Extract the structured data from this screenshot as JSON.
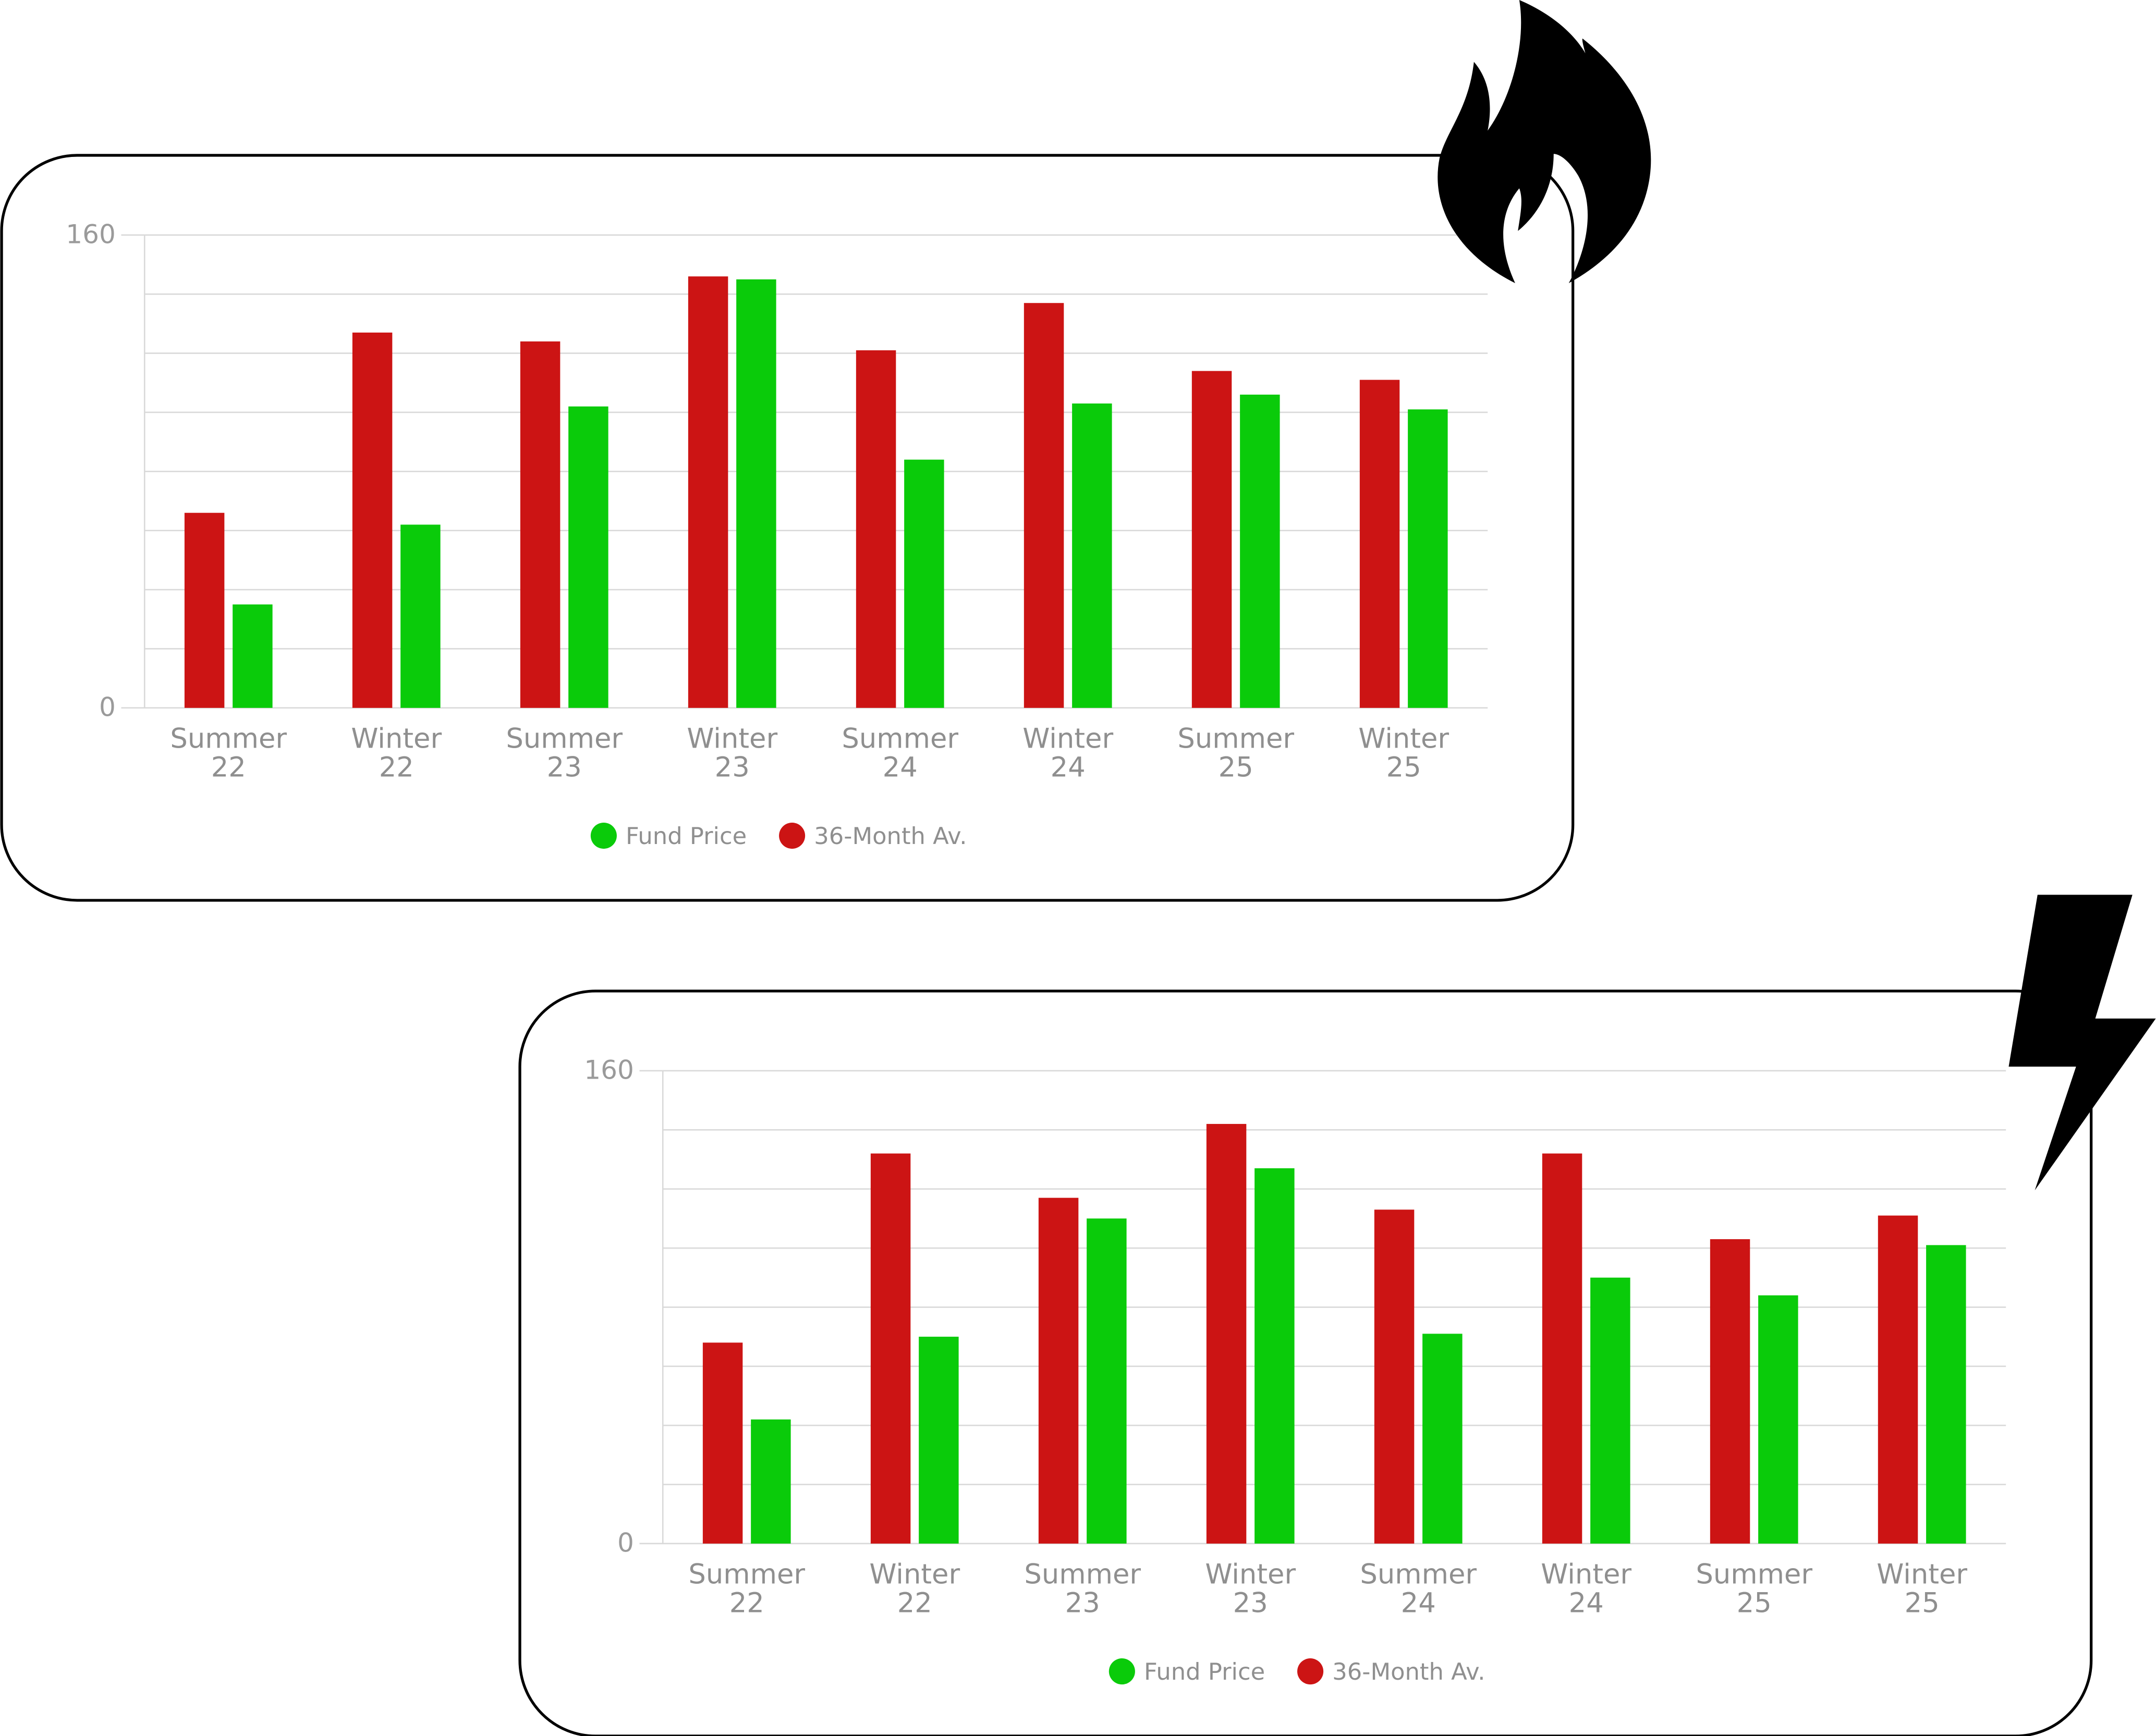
{
  "colors": {
    "fund_price": "#0acb0a",
    "avg_36m": "#cc1414",
    "grid": "#d9d9d9",
    "axis_text": "#8f8f8f"
  },
  "icons": [
    "fire-icon",
    "lightning-bolt-icon"
  ],
  "chart_data": [
    {
      "type": "bar",
      "categories": [
        "Summer 22",
        "Winter 22",
        "Summer 23",
        "Winter 23",
        "Summer 24",
        "Winter 24",
        "Summer 25",
        "Winter 25"
      ],
      "series": [
        {
          "name": "36-Month Av.",
          "values": [
            66,
            127,
            124,
            146,
            121,
            137,
            114,
            111
          ]
        },
        {
          "name": "Fund Price",
          "values": [
            35,
            62,
            102,
            145,
            84,
            103,
            106,
            101
          ]
        }
      ],
      "legend_order": [
        "Fund Price",
        "36-Month Av."
      ],
      "yticks": [
        "0",
        "160"
      ],
      "ylim": [
        0,
        160
      ],
      "grid": true,
      "gridline_step": 20,
      "legend": "bottom-center"
    },
    {
      "type": "bar",
      "categories": [
        "Summer 22",
        "Winter 22",
        "Summer 23",
        "Winter 23",
        "Summer 24",
        "Winter 24",
        "Summer 25",
        "Winter 25"
      ],
      "series": [
        {
          "name": "36-Month Av.",
          "values": [
            68,
            132,
            117,
            142,
            113,
            132,
            103,
            111
          ]
        },
        {
          "name": "Fund Price",
          "values": [
            42,
            70,
            110,
            127,
            71,
            90,
            84,
            101
          ]
        }
      ],
      "legend_order": [
        "Fund Price",
        "36-Month Av."
      ],
      "yticks": [
        "0",
        "160"
      ],
      "ylim": [
        0,
        160
      ],
      "grid": true,
      "gridline_step": 20,
      "legend": "bottom-center"
    }
  ]
}
